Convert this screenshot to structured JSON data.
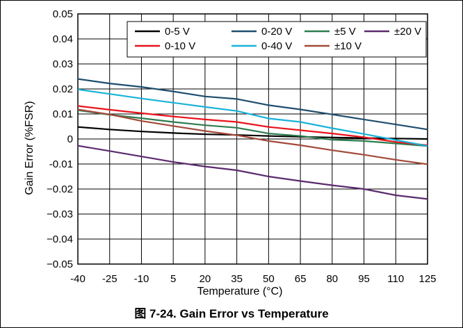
{
  "chart_data": {
    "type": "line",
    "title": "",
    "caption": "图 7-24. Gain Error vs Temperature",
    "xlabel": "Temperature (°C)",
    "ylabel": "Gain Error (%FSR)",
    "xlim": [
      -40,
      125
    ],
    "ylim": [
      -0.05,
      0.05
    ],
    "xticks": [
      -40,
      -25,
      -10,
      5,
      20,
      35,
      50,
      65,
      80,
      95,
      110,
      125
    ],
    "yticks": [
      {
        "v": 0.05,
        "label": "0.05"
      },
      {
        "v": 0.04,
        "label": "0.04"
      },
      {
        "v": 0.03,
        "label": "0.03"
      },
      {
        "v": 0.02,
        "label": "0.02"
      },
      {
        "v": 0.01,
        "label": "0.01"
      },
      {
        "v": 0,
        "label": "0"
      },
      {
        "v": -0.01,
        "label": "-0.01"
      },
      {
        "v": -0.02,
        "label": "−0.02"
      },
      {
        "v": -0.03,
        "label": "−0.03"
      },
      {
        "v": -0.04,
        "label": "−0.04"
      },
      {
        "v": -0.05,
        "label": "−0.05"
      }
    ],
    "grid": true,
    "legend_position": "top-right",
    "x": [
      -40,
      -25,
      -10,
      5,
      20,
      35,
      50,
      65,
      80,
      95,
      110,
      125
    ],
    "series": [
      {
        "name": "0-5 V",
        "color": "#000000",
        "values": [
          0.0048,
          0.0038,
          0.003,
          0.0024,
          0.0019,
          0.0016,
          0.0012,
          0.0009,
          0.0006,
          0.0004,
          0.0002,
          0.0
        ]
      },
      {
        "name": "0-20 V",
        "color": "#1f4e6e",
        "values": [
          0.024,
          0.0222,
          0.0208,
          0.019,
          0.017,
          0.016,
          0.0135,
          0.0118,
          0.0098,
          0.0078,
          0.0058,
          0.0038
        ]
      },
      {
        "name": "±5 V",
        "color": "#2e7d4f",
        "values": [
          0.0115,
          0.0097,
          0.0083,
          0.0068,
          0.0055,
          0.0045,
          0.0022,
          0.0012,
          -0.0003,
          -0.0008,
          -0.0018,
          -0.0028
        ]
      },
      {
        "name": "±20 V",
        "color": "#5b2a6e",
        "values": [
          -0.0027,
          -0.0048,
          -0.007,
          -0.0092,
          -0.011,
          -0.0125,
          -0.015,
          -0.0168,
          -0.0185,
          -0.02,
          -0.0225,
          -0.024
        ]
      },
      {
        "name": "0-10 V",
        "color": "#e8141c",
        "values": [
          0.0132,
          0.0117,
          0.0103,
          0.009,
          0.0078,
          0.0068,
          0.0048,
          0.0035,
          0.0022,
          0.0007,
          -0.0012,
          -0.0025
        ]
      },
      {
        "name": "0-40 V",
        "color": "#1ab2d9",
        "values": [
          0.0198,
          0.018,
          0.0162,
          0.0145,
          0.0128,
          0.0112,
          0.0082,
          0.0068,
          0.0043,
          0.002,
          -0.0004,
          -0.0028
        ]
      },
      {
        "name": "±10 V",
        "color": "#a34a3a",
        "values": [
          0.0118,
          0.0098,
          0.0072,
          0.0052,
          0.0032,
          0.0015,
          -0.0008,
          -0.0025,
          -0.0045,
          -0.0063,
          -0.0083,
          -0.0101
        ]
      }
    ]
  }
}
